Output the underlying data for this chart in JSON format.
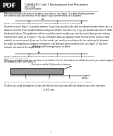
{
  "title": "CHEM 1451 Lab 1 Background and Procedure",
  "section": "Lab 1: 1451",
  "subsection": "Significant Number",
  "body1a": "When you measure the mass of an object on a balance (see Figure 1), a digital display provides",
  "body1b": "the smallest scale and the mass of the object is your determined as 3 to 4 grams.",
  "fig1_caption": "Figure 1: The arrow points to the present value, which lies between 3 g and 4 g of the balance.",
  "body2": "Since the arrow in Figure 1 is exactly between 3 g and 4 g, you should be able to estimate between these two 1 g\ndivisions to tenths of the smallest division and guess whether the value is g, 3.5 g, you should make this 3.5. Make\nthe decimal places. This guidelines tells to record the correct number you need to record when you are making\nmeasurements such as in Figure 2. The use of thumb is that you typically record the next all the smallest scale\nreadable on an instrument if you can. In other words, you need to record when the line value you fall between\ntwo scale by imagining an additional (imaginary) scale between given smallest scale (see Figure 2). You then\nestimate the mass of the object is 3.4.",
  "heading2": "Additional imaginary scales",
  "fig2_caption": "Figure 2: Additional scales (dashed lines) are visually imagined by an experimenter between two printed scale\nvalues (here 3 in g and 4 g).",
  "body3a": "When your smallest scale you are close to each other, the line of thumb is not reliable because you cannot imagine",
  "body3b": "an imaginary scale (see Figure 3).",
  "fig3_heading": "Outlined or smallest 3 dials scales in between",
  "fig3_caption": "Figure 3: Smallest scale you are close to each other then you cannot visualize additional scales in between.",
  "conclusion": "The best you could do might be to conclude that the line value may fall well between two scales and write:",
  "value": "3.97 mL",
  "page_num": "1",
  "bg_color": "#ffffff",
  "text_color": "#000000",
  "gray_bar": "#999999"
}
